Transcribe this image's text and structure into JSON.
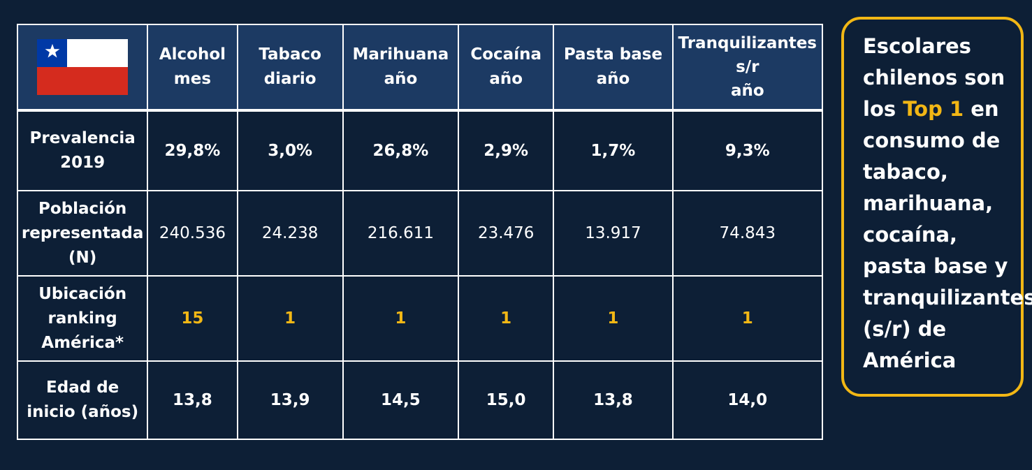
{
  "table": {
    "columns": [
      "Alcohol\nmes",
      "Tabaco\ndiario",
      "Marihuana\naño",
      "Cocaína\naño",
      "Pasta base\naño",
      "Tranquilizantes\ns/r\naño"
    ],
    "rows": [
      {
        "label": "Prevalencia\n2019",
        "values": [
          "29,8%",
          "3,0%",
          "26,8%",
          "2,9%",
          "1,7%",
          "9,3%"
        ]
      },
      {
        "label": "Población\nrepresentada\n(N)",
        "values": [
          "240.536",
          "24.238",
          "216.611",
          "23.476",
          "13.917",
          "74.843"
        ]
      },
      {
        "label": "Ubicación\nranking\nAmérica*",
        "values": [
          "15",
          "1",
          "1",
          "1",
          "1",
          "1"
        ]
      },
      {
        "label": "Edad de\ninicio (años)",
        "values": [
          "13,8",
          "13,9",
          "14,5",
          "15,0",
          "13,8",
          "14,0"
        ]
      }
    ]
  },
  "callout": {
    "before": "Escolares chilenos son los ",
    "highlight": "Top 1",
    "after": " en consumo de tabaco, marihuana, cocaína, pasta base y tranquilizantes (s/r) de América"
  },
  "colors": {
    "background": "#0d1f36",
    "header": "#1c3a63",
    "accent": "#f2b715",
    "flag_red": "#d52b1e",
    "flag_blue": "#0039a6"
  },
  "icons": {
    "flag": "chile-flag-icon"
  }
}
